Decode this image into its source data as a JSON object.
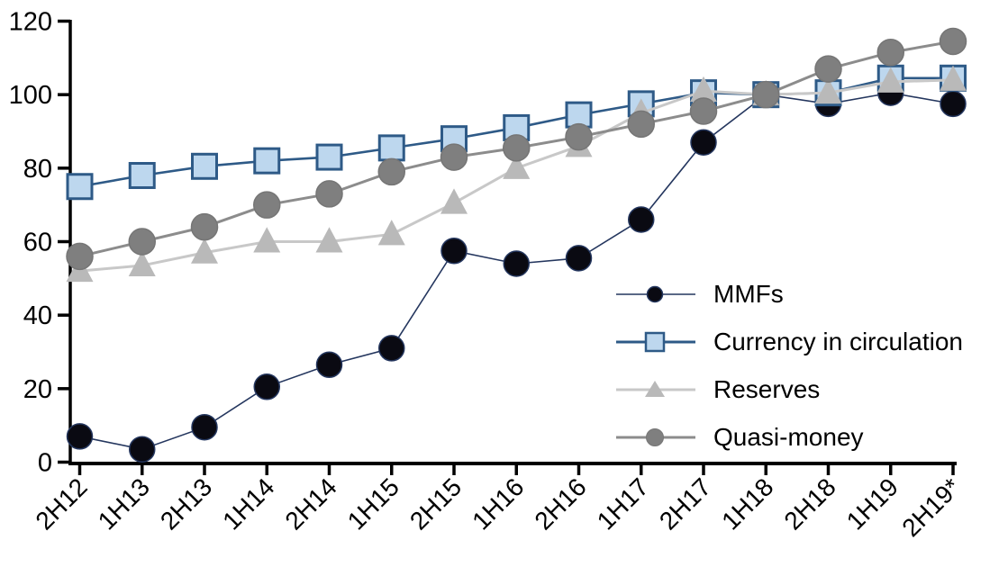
{
  "chart_data": {
    "type": "line",
    "title": "",
    "xlabel": "",
    "ylabel": "",
    "categories": [
      "2H12",
      "1H13",
      "2H13",
      "1H14",
      "2H14",
      "1H15",
      "2H15",
      "1H16",
      "2H16",
      "1H17",
      "2H17",
      "1H18",
      "2H18",
      "1H19",
      "2H19*"
    ],
    "y_ticks": [
      0,
      20,
      40,
      60,
      80,
      100,
      120
    ],
    "ylim": [
      0,
      120
    ],
    "grid": false,
    "legend_position": "inside-right",
    "axis_color": "#000000",
    "series": [
      {
        "name": "MMFs",
        "marker": "circle",
        "marker_color": "#0a0a12",
        "marker_border": "#24365e",
        "line_color": "#24365e",
        "line_width": 1.6,
        "marker_size": 28,
        "values": [
          7,
          3.5,
          9.5,
          20.5,
          26.5,
          31,
          57.5,
          54,
          55.5,
          66,
          87,
          100,
          97.5,
          100.5,
          97.5
        ]
      },
      {
        "name": "Currency in circulation",
        "marker": "square",
        "marker_color": "#bdd7ee",
        "marker_border": "#2e5a87",
        "line_color": "#2e5a87",
        "line_width": 2.6,
        "marker_size": 27,
        "values": [
          75,
          78,
          80.5,
          82,
          83,
          85.5,
          88,
          91,
          94.5,
          97.5,
          100.5,
          100,
          100.5,
          104.5,
          104.5
        ]
      },
      {
        "name": "Reserves",
        "marker": "triangle",
        "marker_color": "#b9b9b9",
        "marker_border": "",
        "line_color": "#c8c8c8",
        "line_width": 3,
        "marker_size": 30,
        "values": [
          52,
          53.5,
          57,
          60,
          60,
          62,
          70.5,
          80,
          86,
          95,
          101,
          100,
          100.5,
          103.5,
          104
        ]
      },
      {
        "name": "Quasi-money",
        "marker": "circle",
        "marker_color": "#7f7f7f",
        "marker_border": "#767676",
        "line_color": "#8c8c8c",
        "line_width": 3,
        "marker_size": 29,
        "values": [
          56,
          60,
          64,
          70,
          73,
          79,
          83,
          85.5,
          88.5,
          92,
          95.5,
          100,
          107,
          111.5,
          114.5
        ]
      }
    ]
  }
}
